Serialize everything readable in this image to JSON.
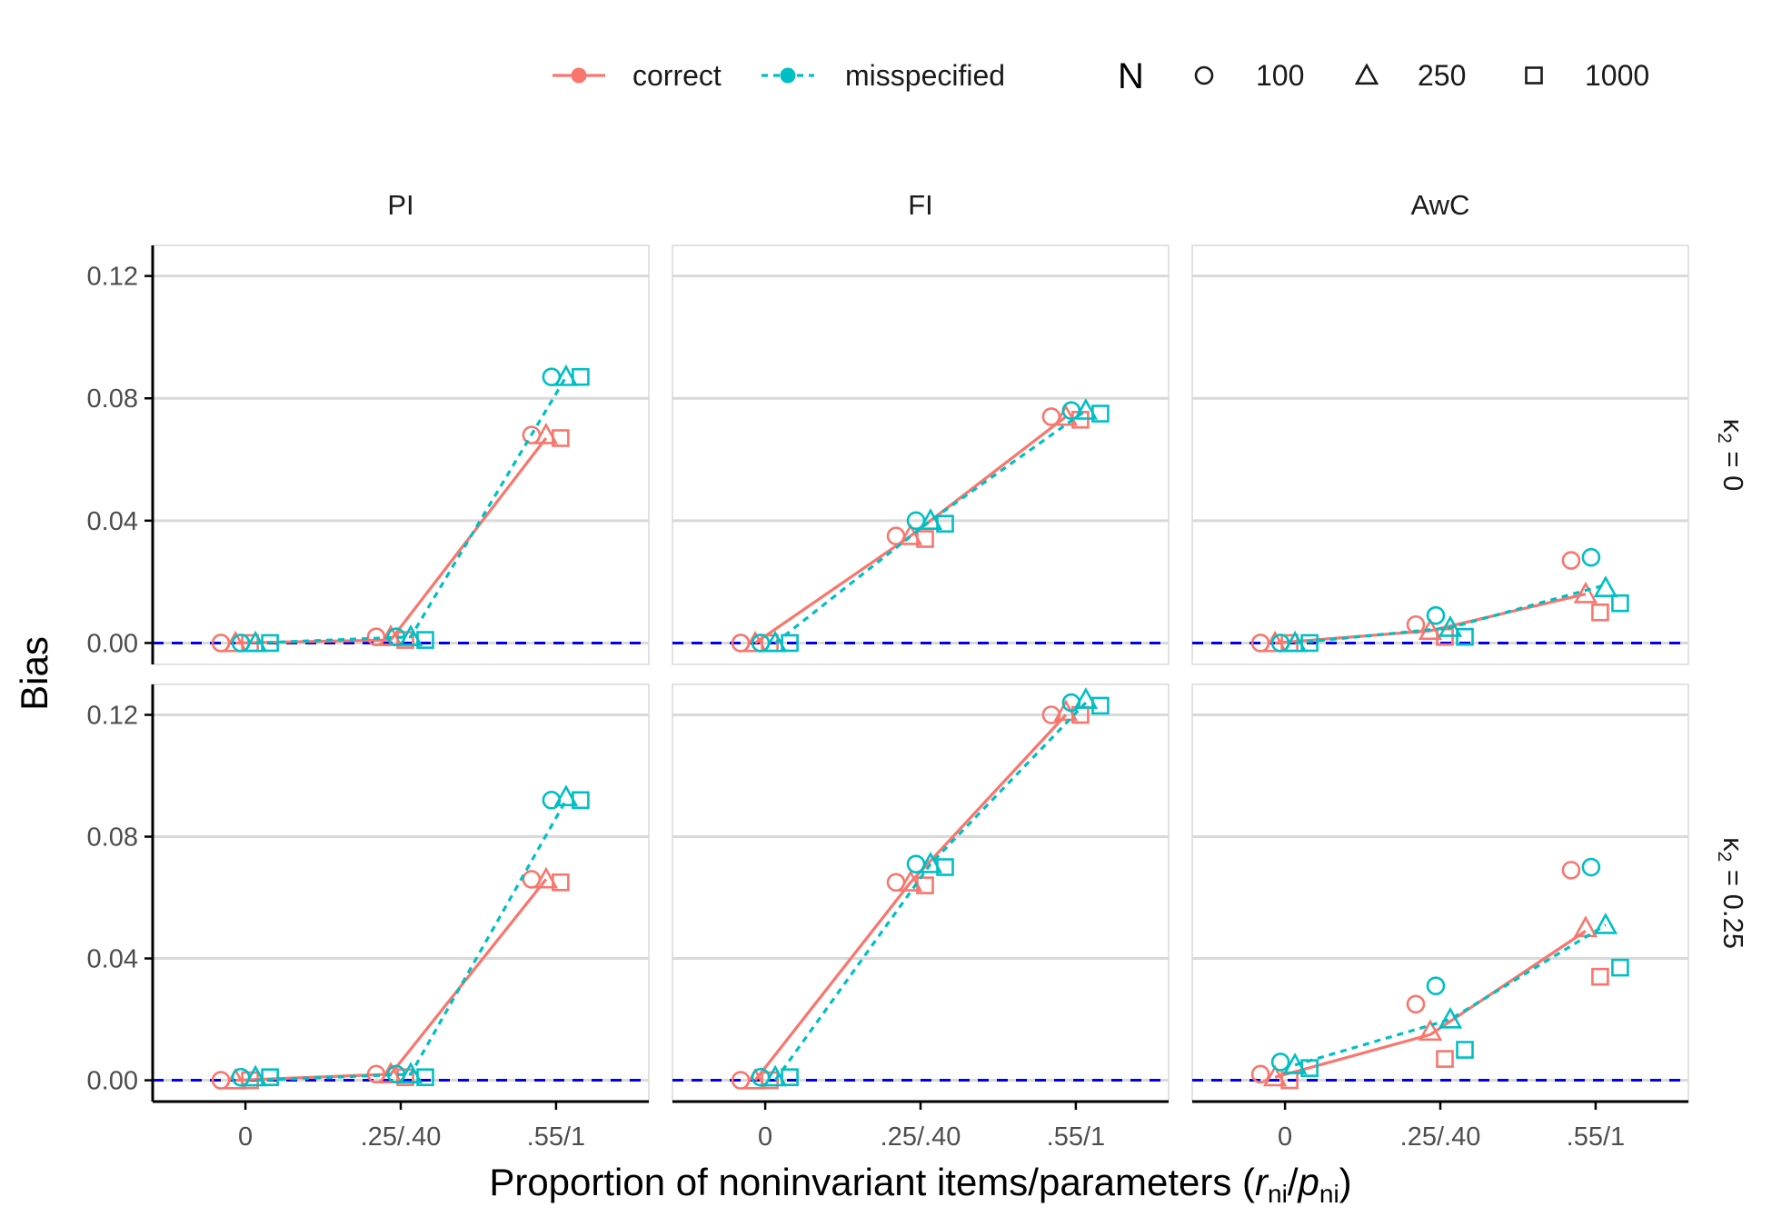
{
  "chart_data": {
    "type": "line",
    "ylabel": "Bias",
    "xlabel": {
      "main": "Proportion of noninvariant items/parameters (",
      "r": "r",
      "r_sub": "ni",
      "slash": "/",
      "p": "p",
      "p_sub": "ni",
      "close": ")"
    },
    "x_categories": [
      "0",
      ".25/.40",
      ".55/1"
    ],
    "y_ticks": [
      0.0,
      0.04,
      0.08,
      0.12
    ],
    "y_tick_labels": [
      "0.00",
      "0.04",
      "0.08",
      "0.12"
    ],
    "ylim": [
      -0.007,
      0.13
    ],
    "columns": [
      "PI",
      "FI",
      "AwC"
    ],
    "rows": [
      {
        "k": "κ",
        "sub": "2",
        "rest": " = 0"
      },
      {
        "k": "κ",
        "sub": "2",
        "rest": " = 0.25"
      }
    ],
    "reference_line": {
      "y": 0,
      "color": "#0000ee",
      "style": "dashed"
    },
    "legend": {
      "models": [
        {
          "label": "correct",
          "color": "#f8766d",
          "linetype": "solid"
        },
        {
          "label": "misspecified",
          "color": "#00bfc4",
          "linetype": "dotted"
        }
      ],
      "n_title": "N",
      "sizes": [
        {
          "label": "100",
          "shape": "circle"
        },
        {
          "label": "250",
          "shape": "triangle"
        },
        {
          "label": "1000",
          "shape": "square"
        }
      ]
    },
    "panels": [
      {
        "row": 0,
        "col": 0,
        "facet": "PI / κ2 = 0",
        "correct": {
          "line": [
            0.0,
            0.001,
            0.067
          ],
          "points": {
            "100": [
              0.0,
              0.002,
              0.068
            ],
            "250": [
              0.0,
              0.002,
              0.068
            ],
            "1000": [
              0.0,
              0.001,
              0.067
            ]
          }
        },
        "misspecified": {
          "line": [
            0.0,
            0.002,
            0.087
          ],
          "points": {
            "100": [
              0.0,
              0.002,
              0.087
            ],
            "250": [
              0.0,
              0.002,
              0.087
            ],
            "1000": [
              0.0,
              0.001,
              0.087
            ]
          }
        }
      },
      {
        "row": 0,
        "col": 1,
        "facet": "FI / κ2 = 0",
        "correct": {
          "line": [
            0.0,
            0.035,
            0.074
          ],
          "points": {
            "100": [
              0.0,
              0.035,
              0.074
            ],
            "250": [
              0.0,
              0.035,
              0.074
            ],
            "1000": [
              0.0,
              0.034,
              0.073
            ]
          }
        },
        "misspecified": {
          "line": [
            0.0,
            0.04,
            0.076
          ],
          "points": {
            "100": [
              0.0,
              0.04,
              0.076
            ],
            "250": [
              0.0,
              0.04,
              0.076
            ],
            "1000": [
              0.0,
              0.039,
              0.075
            ]
          }
        }
      },
      {
        "row": 0,
        "col": 2,
        "facet": "AwC / κ2 = 0",
        "correct": {
          "line": [
            0.0,
            0.004,
            0.016
          ],
          "points": {
            "100": [
              0.0,
              0.006,
              0.027
            ],
            "250": [
              0.0,
              0.004,
              0.016
            ],
            "1000": [
              0.0,
              0.002,
              0.01
            ]
          }
        },
        "misspecified": {
          "line": [
            0.0,
            0.005,
            0.019
          ],
          "points": {
            "100": [
              0.0,
              0.009,
              0.028
            ],
            "250": [
              0.0,
              0.005,
              0.018
            ],
            "1000": [
              0.0,
              0.002,
              0.013
            ]
          }
        }
      },
      {
        "row": 1,
        "col": 0,
        "facet": "PI / κ2 = 0.25",
        "correct": {
          "line": [
            0.0,
            0.002,
            0.066
          ],
          "points": {
            "100": [
              0.0,
              0.002,
              0.066
            ],
            "250": [
              0.0,
              0.002,
              0.066
            ],
            "1000": [
              0.0,
              0.001,
              0.065
            ]
          }
        },
        "misspecified": {
          "line": [
            0.0,
            0.002,
            0.092
          ],
          "points": {
            "100": [
              0.001,
              0.002,
              0.092
            ],
            "250": [
              0.001,
              0.002,
              0.093
            ],
            "1000": [
              0.001,
              0.001,
              0.092
            ]
          }
        }
      },
      {
        "row": 1,
        "col": 1,
        "facet": "FI / κ2 = 0.25",
        "correct": {
          "line": [
            0.0,
            0.065,
            0.12
          ],
          "points": {
            "100": [
              0.0,
              0.065,
              0.12
            ],
            "250": [
              0.0,
              0.065,
              0.121
            ],
            "1000": [
              0.0,
              0.064,
              0.12
            ]
          }
        },
        "misspecified": {
          "line": [
            0.0,
            0.071,
            0.124
          ],
          "points": {
            "100": [
              0.001,
              0.071,
              0.124
            ],
            "250": [
              0.001,
              0.071,
              0.125
            ],
            "1000": [
              0.001,
              0.07,
              0.123
            ]
          }
        }
      },
      {
        "row": 1,
        "col": 2,
        "facet": "AwC / κ2 = 0.25",
        "correct": {
          "line": [
            0.001,
            0.015,
            0.049
          ],
          "points": {
            "100": [
              0.002,
              0.025,
              0.069
            ],
            "250": [
              0.001,
              0.016,
              0.05
            ],
            "1000": [
              0.0,
              0.007,
              0.034
            ]
          }
        },
        "misspecified": {
          "line": [
            0.005,
            0.02,
            0.051
          ],
          "points": {
            "100": [
              0.006,
              0.031,
              0.07
            ],
            "250": [
              0.005,
              0.02,
              0.051
            ],
            "1000": [
              0.004,
              0.01,
              0.037
            ]
          }
        }
      }
    ]
  }
}
